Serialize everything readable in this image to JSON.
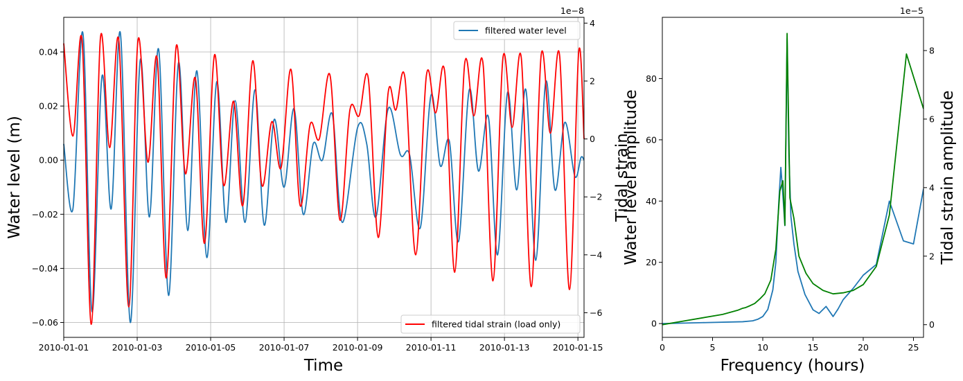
{
  "chart_data": [
    {
      "type": "line",
      "xlabel": "Time",
      "ylabel": "Water level (m)",
      "y2label": "Tidal strain",
      "grid": true,
      "x_domain": [
        "2010-01-01",
        "2010-01-15 04:00"
      ],
      "x_ticks": [
        "2010-01-01",
        "2010-01-03",
        "2010-01-05",
        "2010-01-07",
        "2010-01-09",
        "2010-01-11",
        "2010-01-13",
        "2010-01-15"
      ],
      "ylim": [
        -0.0655,
        0.0528
      ],
      "y_ticks": [
        0.04,
        0.02,
        0.0,
        -0.02,
        -0.04,
        -0.06
      ],
      "y_tick_labels": [
        "0.04",
        "0.02",
        "0.00",
        "−0.02",
        "−0.04",
        "−0.06"
      ],
      "y2lim": [
        -6.85e-08,
        4.2e-08
      ],
      "y2_ticks": [
        4e-08,
        2e-08,
        0,
        -2e-08,
        -4e-08,
        -6e-08
      ],
      "y2_tick_labels": [
        "4",
        "2",
        "0",
        "−2",
        "−4",
        "−6"
      ],
      "y2_offset_label": "1e−8",
      "series": [
        {
          "name": "filtered water level",
          "axis": "left",
          "color": "#1f77b4",
          "legend_loc": "upper right",
          "points": [
            [
              "2010-01-01 00:00",
              0.006
            ],
            [
              "2010-01-01 06:00",
              -0.018
            ],
            [
              "2010-01-01 12:30",
              0.047
            ],
            [
              "2010-01-01 18:30",
              -0.056
            ],
            [
              "2010-01-02 01:00",
              0.031
            ],
            [
              "2010-01-02 07:00",
              -0.018
            ],
            [
              "2010-01-02 13:00",
              0.047
            ],
            [
              "2010-01-02 19:30",
              -0.06
            ],
            [
              "2010-01-03 02:00",
              0.037
            ],
            [
              "2010-01-03 08:00",
              -0.021
            ],
            [
              "2010-01-03 14:00",
              0.041
            ],
            [
              "2010-01-03 20:30",
              -0.05
            ],
            [
              "2010-01-04 03:00",
              0.036
            ],
            [
              "2010-01-04 09:00",
              -0.026
            ],
            [
              "2010-01-04 15:00",
              0.033
            ],
            [
              "2010-01-04 21:30",
              -0.036
            ],
            [
              "2010-01-05 04:00",
              0.029
            ],
            [
              "2010-01-05 10:00",
              -0.023
            ],
            [
              "2010-01-05 16:00",
              0.022
            ],
            [
              "2010-01-05 22:30",
              -0.023
            ],
            [
              "2010-01-06 05:00",
              0.026
            ],
            [
              "2010-01-06 11:00",
              -0.024
            ],
            [
              "2010-01-06 17:30",
              0.015
            ],
            [
              "2010-01-07 00:00",
              -0.01
            ],
            [
              "2010-01-07 06:30",
              0.019
            ],
            [
              "2010-01-07 12:30",
              -0.02
            ],
            [
              "2010-01-07 19:00",
              0.006
            ],
            [
              "2010-01-08 01:00",
              0.0
            ],
            [
              "2010-01-08 07:30",
              0.017
            ],
            [
              "2010-01-08 14:00",
              -0.023
            ],
            [
              "2010-01-09 00:00",
              0.012
            ],
            [
              "2010-01-09 06:00",
              0.006
            ],
            [
              "2010-01-09 12:00",
              -0.021
            ],
            [
              "2010-01-09 20:00",
              0.019
            ],
            [
              "2010-01-10 04:00",
              0.002
            ],
            [
              "2010-01-10 10:00",
              0.002
            ],
            [
              "2010-01-10 17:00",
              -0.025
            ],
            [
              "2010-01-11 00:00",
              0.024
            ],
            [
              "2010-01-11 06:00",
              -0.002
            ],
            [
              "2010-01-11 12:00",
              0.007
            ],
            [
              "2010-01-11 18:00",
              -0.03
            ],
            [
              "2010-01-12 01:00",
              0.026
            ],
            [
              "2010-01-12 07:00",
              -0.004
            ],
            [
              "2010-01-12 13:30",
              0.016
            ],
            [
              "2010-01-12 19:30",
              -0.035
            ],
            [
              "2010-01-13 02:00",
              0.025
            ],
            [
              "2010-01-13 08:00",
              -0.011
            ],
            [
              "2010-01-13 14:00",
              0.026
            ],
            [
              "2010-01-13 20:30",
              -0.037
            ],
            [
              "2010-01-14 03:00",
              0.029
            ],
            [
              "2010-01-14 09:00",
              -0.011
            ],
            [
              "2010-01-14 15:30",
              0.014
            ],
            [
              "2010-01-14 22:00",
              -0.006
            ],
            [
              "2010-01-15 02:00",
              0.001
            ],
            [
              "2010-01-15 04:00",
              0.0
            ]
          ]
        },
        {
          "name": "filtered tidal strain (load only)",
          "axis": "right",
          "color": "#ff0000",
          "legend_loc": "lower right",
          "points": [
            [
              "2010-01-01 00:00",
              3.3e-08
            ],
            [
              "2010-01-01 06:00",
              1e-09
            ],
            [
              "2010-01-01 12:00",
              3.4e-08
            ],
            [
              "2010-01-01 18:00",
              -6.4e-08
            ],
            [
              "2010-01-02 00:00",
              3.5e-08
            ],
            [
              "2010-01-02 06:00",
              -3e-09
            ],
            [
              "2010-01-02 12:00",
              3.4e-08
            ],
            [
              "2010-01-02 18:30",
              -5.8e-08
            ],
            [
              "2010-01-03 00:30",
              3.4e-08
            ],
            [
              "2010-01-03 07:00",
              -8e-09
            ],
            [
              "2010-01-03 13:00",
              2.8e-08
            ],
            [
              "2010-01-03 19:00",
              -4.8e-08
            ],
            [
              "2010-01-04 01:30",
              3.2e-08
            ],
            [
              "2010-01-04 07:30",
              -1.2e-08
            ],
            [
              "2010-01-04 14:00",
              2.1e-08
            ],
            [
              "2010-01-04 20:00",
              -3.6e-08
            ],
            [
              "2010-01-05 02:30",
              2.9e-08
            ],
            [
              "2010-01-05 08:30",
              -1.6e-08
            ],
            [
              "2010-01-05 15:00",
              1.3e-08
            ],
            [
              "2010-01-05 21:00",
              -2.3e-08
            ],
            [
              "2010-01-06 03:30",
              2.7e-08
            ],
            [
              "2010-01-06 09:30",
              -1.6e-08
            ],
            [
              "2010-01-06 16:00",
              6e-09
            ],
            [
              "2010-01-06 22:00",
              -1e-08
            ],
            [
              "2010-01-07 04:30",
              2.4e-08
            ],
            [
              "2010-01-07 10:30",
              -2.3e-08
            ],
            [
              "2010-01-07 17:00",
              5e-09
            ],
            [
              "2010-01-07 23:00",
              0.0
            ],
            [
              "2010-01-08 06:00",
              2.2e-08
            ],
            [
              "2010-01-08 12:30",
              -2.8e-08
            ],
            [
              "2010-01-08 19:00",
              1e-08
            ],
            [
              "2010-01-09 01:00",
              8e-09
            ],
            [
              "2010-01-09 07:00",
              2.1e-08
            ],
            [
              "2010-01-09 13:30",
              -3.4e-08
            ],
            [
              "2010-01-09 20:00",
              1.6e-08
            ],
            [
              "2010-01-10 01:00",
              1e-08
            ],
            [
              "2010-01-10 07:00",
              2.1e-08
            ],
            [
              "2010-01-10 14:00",
              -4e-08
            ],
            [
              "2010-01-10 21:00",
              2.2e-08
            ],
            [
              "2010-01-11 03:00",
              9e-09
            ],
            [
              "2010-01-11 09:00",
              2.3e-08
            ],
            [
              "2010-01-11 15:30",
              -4.6e-08
            ],
            [
              "2010-01-11 22:00",
              2.6e-08
            ],
            [
              "2010-01-12 04:00",
              8e-09
            ],
            [
              "2010-01-12 10:00",
              2.6e-08
            ],
            [
              "2010-01-12 16:30",
              -4.9e-08
            ],
            [
              "2010-01-12 23:00",
              2.8e-08
            ],
            [
              "2010-01-13 05:00",
              4e-09
            ],
            [
              "2010-01-13 11:00",
              2.8e-08
            ],
            [
              "2010-01-13 17:30",
              -5.1e-08
            ],
            [
              "2010-01-14 00:00",
              2.9e-08
            ],
            [
              "2010-01-14 06:00",
              2e-09
            ],
            [
              "2010-01-14 12:00",
              2.9e-08
            ],
            [
              "2010-01-14 18:30",
              -5.2e-08
            ],
            [
              "2010-01-15 00:30",
              3e-08
            ],
            [
              "2010-01-15 04:00",
              0.0
            ]
          ]
        }
      ]
    },
    {
      "type": "line",
      "xlabel": "Frequency (hours)",
      "ylabel": "Water level amplitude",
      "y2label": "Tidal strain amplitude",
      "grid": false,
      "xlim": [
        0,
        26
      ],
      "x_ticks": [
        0,
        5,
        10,
        15,
        20,
        25
      ],
      "ylim": [
        -4.5,
        100
      ],
      "y_ticks": [
        0,
        20,
        40,
        60,
        80
      ],
      "y2lim": [
        -3.7e-06,
        8.97e-05
      ],
      "y2_ticks": [
        0,
        2e-05,
        4e-05,
        6e-05,
        8e-05
      ],
      "y2_tick_labels": [
        "0",
        "2",
        "4",
        "6",
        "8"
      ],
      "y2_offset_label": "1e−5",
      "series": [
        {
          "name": "water level amplitude",
          "axis": "left",
          "color": "#1f77b4",
          "x": [
            0,
            4,
            8,
            9,
            9.5,
            10,
            10.5,
            11,
            11.3,
            11.6,
            11.8,
            12.0,
            12.2,
            12.42,
            12.6,
            12.8,
            13.1,
            13.5,
            14.2,
            15.0,
            15.6,
            16.3,
            17.0,
            17.5,
            18.0,
            19.0,
            20.0,
            21.3,
            22.6,
            24.0,
            25.0,
            26.0
          ],
          "y": [
            0,
            0.3,
            0.6,
            0.9,
            1.4,
            2.3,
            4.6,
            11.0,
            20.0,
            40.0,
            51.0,
            42.0,
            32.0,
            93.0,
            55.0,
            35.0,
            26.0,
            17.0,
            9.5,
            4.5,
            3.3,
            5.6,
            2.3,
            4.8,
            7.8,
            11.5,
            15.8,
            19.3,
            40.0,
            27.0,
            26.0,
            44.0
          ]
        },
        {
          "name": "tidal strain amplitude",
          "axis": "right",
          "color": "#008000",
          "x": [
            0,
            2,
            4,
            6,
            7,
            7.5,
            8.0,
            8.3,
            8.7,
            9.2,
            9.7,
            10.2,
            10.8,
            11.3,
            11.7,
            12.0,
            12.2,
            12.42,
            12.7,
            13.1,
            13.6,
            14.3,
            15.0,
            16.0,
            17.0,
            18.0,
            19.0,
            20.0,
            21.3,
            22.6,
            24.3,
            26.0
          ],
          "y": [
            0,
            1e-06,
            2e-06,
            3e-06,
            3.8e-06,
            4.2e-06,
            4.8e-06,
            5e-06,
            5.5e-06,
            6.2e-06,
            7.5e-06,
            9e-06,
            1.3e-05,
            2.2e-05,
            3.9e-05,
            4.2e-05,
            2.9e-05,
            8.5e-05,
            3.7e-05,
            3.1e-05,
            2e-05,
            1.5e-05,
            1.2e-05,
            1e-05,
            9e-06,
            9.3e-06,
            1e-05,
            1.17e-05,
            1.7e-05,
            3.2e-05,
            7.9e-05,
            6.3e-05
          ]
        }
      ]
    }
  ]
}
